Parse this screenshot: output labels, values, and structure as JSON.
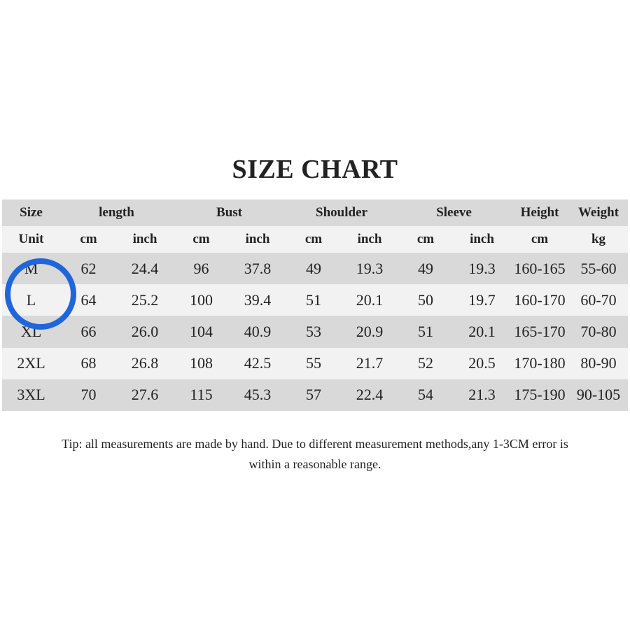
{
  "title": "SIZE CHART",
  "header_row1": [
    "Size",
    "length",
    "Bust",
    "Shoulder",
    "Sleeve",
    "Height",
    "Weight"
  ],
  "header_row2": [
    "Unit",
    "cm",
    "inch",
    "cm",
    "inch",
    "cm",
    "inch",
    "cm",
    "inch",
    "cm",
    "kg"
  ],
  "rows": [
    [
      "M",
      "62",
      "24.4",
      "96",
      "37.8",
      "49",
      "19.3",
      "49",
      "19.3",
      "160-165",
      "55-60"
    ],
    [
      "L",
      "64",
      "25.2",
      "100",
      "39.4",
      "51",
      "20.1",
      "50",
      "19.7",
      "160-170",
      "60-70"
    ],
    [
      "XL",
      "66",
      "26.0",
      "104",
      "40.9",
      "53",
      "20.9",
      "51",
      "20.1",
      "165-170",
      "70-80"
    ],
    [
      "2XL",
      "68",
      "26.8",
      "108",
      "42.5",
      "55",
      "21.7",
      "52",
      "20.5",
      "170-180",
      "80-90"
    ],
    [
      "3XL",
      "70",
      "27.6",
      "115",
      "45.3",
      "57",
      "22.4",
      "54",
      "21.3",
      "175-190",
      "90-105"
    ]
  ],
  "tip_line1": "Tip: all measurements are made by hand. Due to different measurement methods,any 1-3CM error is",
  "tip_line2": "within a reasonable range.",
  "highlight_color": "#1f66dd",
  "highlighted_size": "L"
}
